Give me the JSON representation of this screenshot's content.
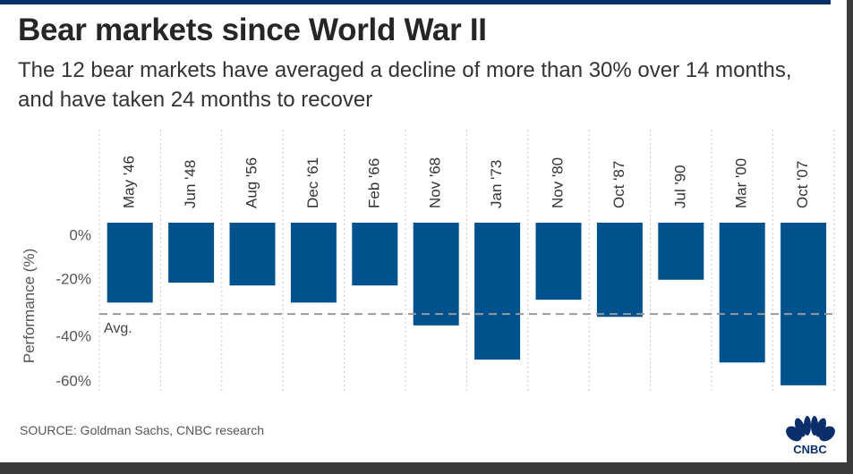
{
  "title": "Bear markets since World War II",
  "subtitle": "The 12 bear markets have averaged a decline of more than 30% over 14 months, and have taken 24 months to recover",
  "source": "SOURCE: Goldman Sachs, CNBC research",
  "logo_text": "CNBC",
  "chart_data": {
    "type": "bar",
    "categories": [
      "May '46",
      "Jun '48",
      "Aug '56",
      "Dec '61",
      "Feb '66",
      "Nov '68",
      "Jan '73",
      "Nov '80",
      "Oct '87",
      "Jul '90",
      "Mar '00",
      "Oct '07"
    ],
    "values": [
      -28,
      -21,
      -22,
      -28,
      -22,
      -36,
      -48,
      -27,
      -33,
      -20,
      -49,
      -57
    ],
    "ylabel": "Performance (%)",
    "yticks": [
      {
        "value": 0,
        "label": "0%"
      },
      {
        "value": -20,
        "label": "-20%"
      },
      {
        "value": -40,
        "label": "-40%"
      },
      {
        "value": -60,
        "label": "-60%"
      }
    ],
    "ylim": [
      -60,
      0
    ],
    "average": {
      "value": -32,
      "label": "Avg."
    },
    "bar_color": "#00528f",
    "grid": "vertical dotted"
  }
}
